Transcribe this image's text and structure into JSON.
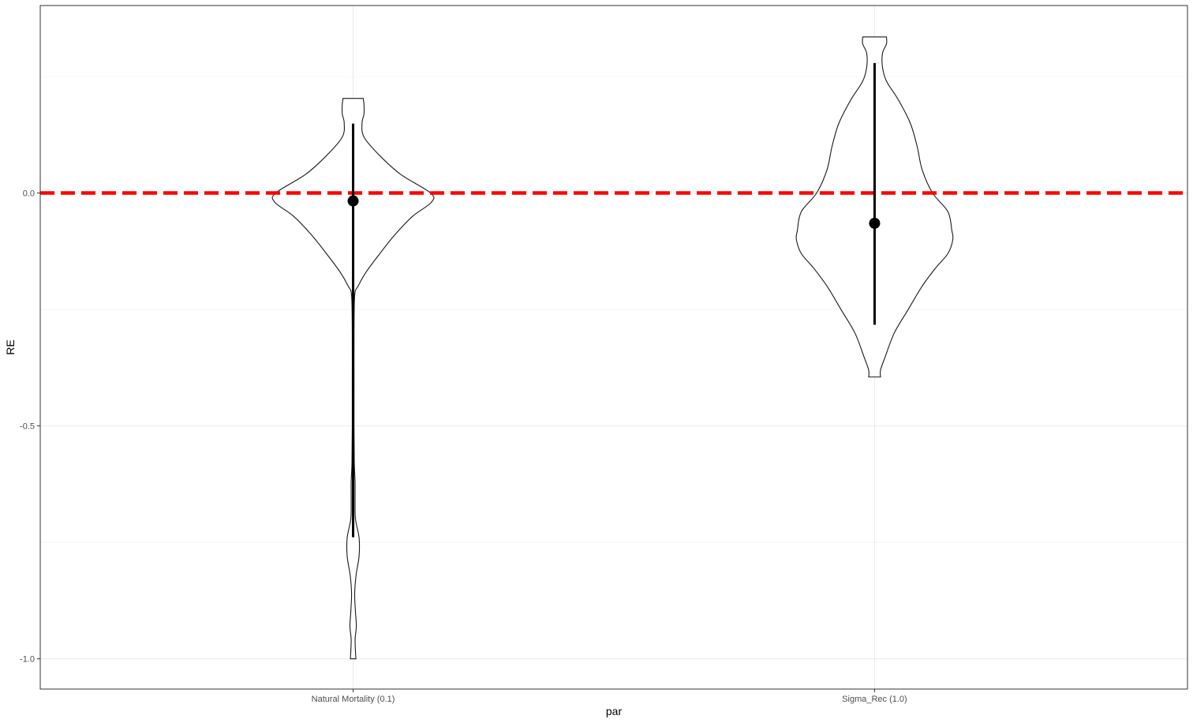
{
  "chart_data": {
    "type": "violin",
    "xlabel": "par",
    "ylabel": "RE",
    "categories": [
      "Natural Mortality (0.1)",
      "Sigma_Rec (1.0)"
    ],
    "yticks": [
      {
        "value": 0.0,
        "label": "0.0"
      },
      {
        "value": -0.5,
        "label": "-0.5"
      },
      {
        "value": -1.0,
        "label": "-1.0"
      }
    ],
    "ylim": [
      -1.065,
      0.4025
    ],
    "grid": true,
    "reference_line": {
      "y": 0.0,
      "color": "#ff0000",
      "style": "dashed"
    },
    "series": [
      {
        "category": "Natural Mortality (0.1)",
        "point": -0.017,
        "interval": [
          -0.739,
          0.149
        ],
        "range": [
          -1.0,
          0.203
        ],
        "density": [
          [
            0.203,
            0.129
          ],
          [
            0.19,
            0.139
          ],
          [
            0.17,
            0.139
          ],
          [
            0.15,
            0.114
          ],
          [
            0.12,
            0.139
          ],
          [
            0.08,
            0.342
          ],
          [
            0.04,
            0.608
          ],
          [
            0.0,
            0.99
          ],
          [
            -0.02,
            1.0
          ],
          [
            -0.05,
            0.76
          ],
          [
            -0.09,
            0.532
          ],
          [
            -0.13,
            0.342
          ],
          [
            -0.17,
            0.165
          ],
          [
            -0.2,
            0.063
          ],
          [
            -0.22,
            0.02
          ],
          [
            -0.3,
            0.011
          ],
          [
            -0.4,
            0.011
          ],
          [
            -0.5,
            0.011
          ],
          [
            -0.58,
            0.015
          ],
          [
            -0.62,
            0.025
          ],
          [
            -0.66,
            0.025
          ],
          [
            -0.7,
            0.03
          ],
          [
            -0.74,
            0.076
          ],
          [
            -0.78,
            0.076
          ],
          [
            -0.82,
            0.038
          ],
          [
            -0.86,
            0.02
          ],
          [
            -0.9,
            0.03
          ],
          [
            -0.93,
            0.041
          ],
          [
            -0.96,
            0.025
          ],
          [
            -1.0,
            0.035
          ]
        ]
      },
      {
        "category": "Sigma_Rec (1.0)",
        "point": -0.065,
        "interval": [
          -0.283,
          0.279
        ],
        "range": [
          -0.395,
          0.335
        ],
        "density": [
          [
            0.335,
            0.152
          ],
          [
            0.32,
            0.152
          ],
          [
            0.3,
            0.101
          ],
          [
            0.27,
            0.101
          ],
          [
            0.24,
            0.152
          ],
          [
            0.2,
            0.304
          ],
          [
            0.15,
            0.456
          ],
          [
            0.1,
            0.544
          ],
          [
            0.05,
            0.608
          ],
          [
            0.0,
            0.741
          ],
          [
            -0.04,
            0.937
          ],
          [
            -0.08,
            0.987
          ],
          [
            -0.1,
            1.0
          ],
          [
            -0.13,
            0.937
          ],
          [
            -0.16,
            0.785
          ],
          [
            -0.2,
            0.608
          ],
          [
            -0.25,
            0.43
          ],
          [
            -0.3,
            0.253
          ],
          [
            -0.35,
            0.139
          ],
          [
            -0.38,
            0.076
          ],
          [
            -0.395,
            0.076
          ]
        ]
      }
    ]
  }
}
